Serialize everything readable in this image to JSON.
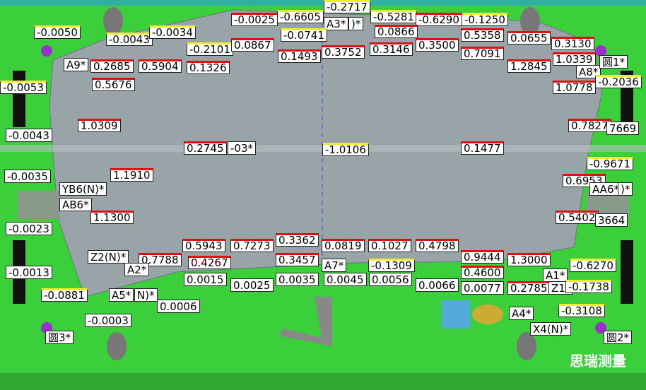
{
  "labels": [
    "-0.2717",
    "-0.0025",
    "-0.6605",
    "-0.5281",
    "-0.6290",
    "-0.1250",
    "A3*",
    ")*",
    "-0.0050",
    "-0.0043",
    "-0.0034",
    "-0.0741",
    "0.0866",
    "0.5358",
    "0.0655",
    "0.3130",
    "-0.2101",
    "0.0867",
    "0.1493",
    "0.3752",
    "0.3146",
    "0.3500",
    "0.7091",
    "1.0339",
    "A8*",
    "圆1*",
    "A9*",
    "0.2685",
    "0.5904",
    "0.1326",
    "1.2845",
    "-0.0053",
    "0.5676",
    "1.0778",
    "-0.2036",
    "1.0309",
    "0.7827",
    "7669",
    "-0.0043",
    "0.2745",
    "-03*",
    "-1.0106",
    "0.1477",
    "-0.9671",
    "-0.0035",
    "1.1910",
    "0.6953",
    "YB6(N)*",
    "AA6*",
    ")*",
    "AB6*",
    "1.1300",
    "-0.0023",
    "0.5402",
    "3664",
    "0.5943",
    "0.7273",
    "0.3362",
    "0.0819",
    "0.1027",
    "0.4798",
    "Z2(N)*",
    "0.7788",
    "0.4267",
    "0.3457",
    "0.9444",
    "1.3000",
    "A2*",
    "A7*",
    "-0.1309",
    "-0.6270",
    "-0.0013",
    "0.4600",
    "A1*",
    "0.0015",
    "0.0025",
    "0.0035",
    "0.0045",
    "0.0056",
    "0.0066",
    "0.0077",
    "0.2785",
    "Z1(",
    "-0.1738",
    "-0.0881",
    "A5*",
    "N)*",
    "0.0006",
    "-0.3108",
    "A4*",
    "-0.0003",
    "X4(N)*",
    "圆3*",
    "圆2*"
  ],
  "watermark": "思瑞测量"
}
